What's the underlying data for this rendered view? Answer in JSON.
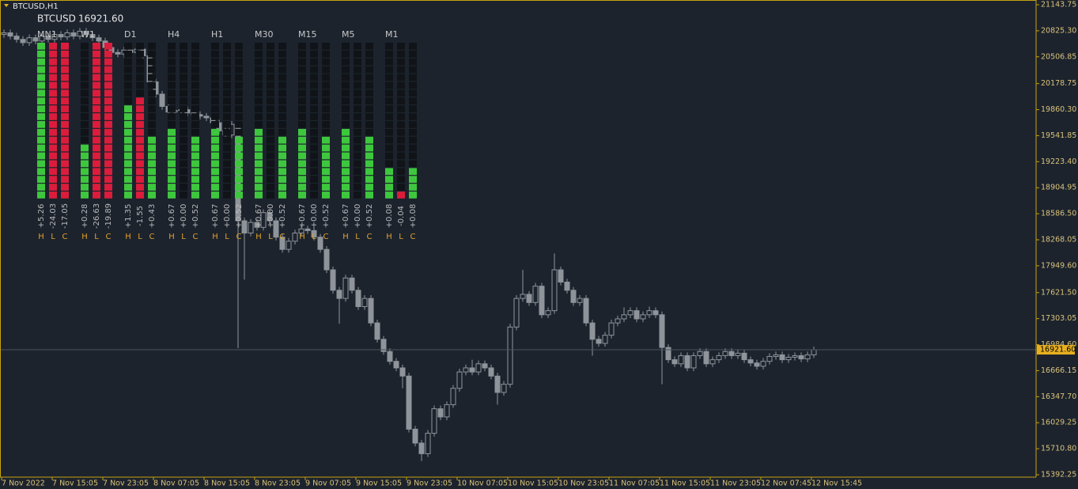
{
  "chart_data": {
    "type": "candlestick",
    "title": "BTCUSD,H1",
    "symbol": "BTCUSD",
    "color": "#8f949a",
    "axis_color": "#c8a20e",
    "last_price": 16921.6,
    "last_price_label": "16921.60",
    "ylim": [
      15392.25,
      21143.75
    ],
    "yticks": [
      21143.75,
      {
        "value": 20825.3,
        "label": "20825.30"
      },
      20506.85,
      20178.75,
      {
        "value": 19860.3,
        "label": "19860.30"
      },
      19541.85,
      {
        "value": 19223.4,
        "label": "19223.40"
      },
      18904.95,
      {
        "value": 18586.5,
        "label": "18586.50"
      },
      18268.05,
      {
        "value": 17949.6,
        "label": "17949.60"
      },
      {
        "value": 17621.5,
        "label": "17621.50"
      },
      17303.05,
      {
        "value": 16984.6,
        "label": "16984.60"
      },
      16666.15,
      {
        "value": 16347.7,
        "label": "16347.70"
      },
      16029.25,
      {
        "value": 15710.8,
        "label": "15710.80"
      },
      15392.25
    ],
    "categories": [
      "7 Nov 2022",
      null,
      null,
      null,
      null,
      null,
      null,
      null,
      "7 Nov 15:05",
      null,
      null,
      null,
      null,
      null,
      null,
      null,
      "7 Nov 23:05",
      null,
      null,
      null,
      null,
      null,
      null,
      null,
      "8 Nov 07:05",
      null,
      null,
      null,
      null,
      null,
      null,
      null,
      "8 Nov 15:05",
      null,
      null,
      null,
      null,
      null,
      null,
      null,
      "8 Nov 23:05",
      null,
      null,
      null,
      null,
      null,
      null,
      null,
      "9 Nov 07:05",
      null,
      null,
      null,
      null,
      null,
      null,
      null,
      "9 Nov 15:05",
      null,
      null,
      null,
      null,
      null,
      null,
      null,
      "9 Nov 23:05",
      null,
      null,
      null,
      null,
      null,
      null,
      null,
      "10 Nov 07:05",
      null,
      null,
      null,
      null,
      null,
      null,
      null,
      "10 Nov 15:05",
      null,
      null,
      null,
      null,
      null,
      null,
      null,
      "10 Nov 23:05",
      null,
      null,
      null,
      null,
      null,
      null,
      null,
      "11 Nov 07:05",
      null,
      null,
      null,
      null,
      null,
      null,
      null,
      "11 Nov 15:05",
      null,
      null,
      null,
      null,
      null,
      null,
      null,
      "11 Nov 23:05",
      null,
      null,
      null,
      null,
      null,
      null,
      null,
      "12 Nov 07:45",
      null,
      null,
      null,
      null,
      null,
      null,
      null,
      "12 Nov 15:45"
    ],
    "candles": [
      [
        20780,
        20840,
        20740,
        20800
      ],
      [
        20800,
        20840,
        20720,
        20760
      ],
      [
        20760,
        20800,
        20680,
        20720
      ],
      [
        20720,
        20760,
        20640,
        20680
      ],
      [
        20680,
        20780,
        20640,
        20740
      ],
      [
        20740,
        20780,
        20660,
        20700
      ],
      [
        20700,
        20800,
        20660,
        20760
      ],
      [
        20760,
        20800,
        20680,
        20720
      ],
      [
        20720,
        20820,
        20680,
        20780
      ],
      [
        20780,
        20820,
        20710,
        20750
      ],
      [
        20750,
        20840,
        20710,
        20800
      ],
      [
        20800,
        20840,
        20720,
        20760
      ],
      [
        20760,
        20860,
        20720,
        20820
      ],
      [
        20820,
        20860,
        20740,
        20780
      ],
      [
        20780,
        20820,
        20700,
        20740
      ],
      [
        20740,
        20780,
        20660,
        20700
      ],
      [
        20700,
        20740,
        20580,
        20620
      ],
      [
        20620,
        20660,
        20520,
        20560
      ],
      [
        20560,
        20600,
        20500,
        20540
      ],
      [
        20540,
        20630,
        20500,
        20590
      ],
      [
        20590,
        20630,
        20520,
        20560
      ],
      [
        20560,
        20640,
        20520,
        20600
      ],
      [
        20600,
        20640,
        20480,
        20520
      ],
      [
        20520,
        20560,
        20160,
        20200
      ],
      [
        20200,
        20240,
        20010,
        20050
      ],
      [
        20050,
        20090,
        19860,
        19900
      ],
      [
        19900,
        19940,
        19790,
        19830
      ],
      [
        19830,
        19890,
        19790,
        19850
      ],
      [
        19850,
        19900,
        19810,
        19860
      ],
      [
        19860,
        19900,
        19780,
        19820
      ],
      [
        19820,
        19860,
        19760,
        19800
      ],
      [
        19800,
        19840,
        19740,
        19780
      ],
      [
        19780,
        19820,
        19720,
        19760
      ],
      [
        19760,
        19800,
        19660,
        19700
      ],
      [
        19700,
        19740,
        19560,
        19600
      ],
      [
        19600,
        19640,
        19510,
        19550
      ],
      [
        19550,
        19720,
        19510,
        19680
      ],
      [
        19680,
        19720,
        16940,
        18500
      ],
      [
        18500,
        18540,
        17780,
        18350
      ],
      [
        18350,
        18520,
        18310,
        18480
      ],
      [
        18480,
        18520,
        18380,
        18420
      ],
      [
        18420,
        18640,
        18380,
        18600
      ],
      [
        18600,
        18640,
        18460,
        18500
      ],
      [
        18500,
        18540,
        18260,
        18300
      ],
      [
        18300,
        18340,
        18110,
        18150
      ],
      [
        18150,
        18290,
        18110,
        18250
      ],
      [
        18250,
        18390,
        18210,
        18350
      ],
      [
        18350,
        18440,
        18310,
        18400
      ],
      [
        18400,
        18440,
        18340,
        18380
      ],
      [
        18380,
        18420,
        18260,
        18300
      ],
      [
        18300,
        18340,
        18110,
        18150
      ],
      [
        18150,
        18190,
        17860,
        17900
      ],
      [
        17900,
        17940,
        17610,
        17650
      ],
      [
        17650,
        17690,
        17240,
        17550
      ],
      [
        17550,
        17840,
        17510,
        17800
      ],
      [
        17800,
        17840,
        17610,
        17650
      ],
      [
        17650,
        17690,
        17410,
        17450
      ],
      [
        17450,
        17590,
        17410,
        17550
      ],
      [
        17550,
        17590,
        17210,
        17250
      ],
      [
        17250,
        17290,
        17010,
        17050
      ],
      [
        17050,
        17090,
        16860,
        16900
      ],
      [
        16900,
        16940,
        16740,
        16780
      ],
      [
        16780,
        16820,
        16660,
        16700
      ],
      [
        16700,
        16740,
        16450,
        16600
      ],
      [
        16600,
        16640,
        15910,
        15950
      ],
      [
        15950,
        15990,
        15740,
        15780
      ],
      [
        15780,
        15820,
        15560,
        15650
      ],
      [
        15650,
        15940,
        15610,
        15900
      ],
      [
        15900,
        16240,
        15860,
        16200
      ],
      [
        16200,
        16240,
        16060,
        16100
      ],
      [
        16100,
        16290,
        16060,
        16250
      ],
      [
        16250,
        16490,
        16210,
        16450
      ],
      [
        16450,
        16690,
        16410,
        16650
      ],
      [
        16650,
        16740,
        16610,
        16700
      ],
      [
        16700,
        16800,
        16610,
        16650
      ],
      [
        16650,
        16790,
        16610,
        16750
      ],
      [
        16750,
        16790,
        16660,
        16700
      ],
      [
        16700,
        16740,
        16560,
        16600
      ],
      [
        16600,
        16640,
        16250,
        16400
      ],
      [
        16400,
        16540,
        16360,
        16500
      ],
      [
        16500,
        17240,
        16460,
        17200
      ],
      [
        17200,
        17590,
        17160,
        17550
      ],
      [
        17550,
        17900,
        17510,
        17600
      ],
      [
        17600,
        17640,
        17460,
        17500
      ],
      [
        17500,
        17740,
        17460,
        17700
      ],
      [
        17700,
        17740,
        17310,
        17350
      ],
      [
        17350,
        17440,
        17310,
        17400
      ],
      [
        17400,
        18100,
        17360,
        17900
      ],
      [
        17900,
        17940,
        17710,
        17750
      ],
      [
        17750,
        17790,
        17610,
        17650
      ],
      [
        17650,
        17690,
        17460,
        17500
      ],
      [
        17500,
        17590,
        17460,
        17550
      ],
      [
        17550,
        17590,
        17210,
        17250
      ],
      [
        17250,
        17290,
        16850,
        17050
      ],
      [
        17050,
        17090,
        16960,
        17000
      ],
      [
        17000,
        17140,
        16960,
        17100
      ],
      [
        17100,
        17290,
        17060,
        17250
      ],
      [
        17250,
        17340,
        17210,
        17300
      ],
      [
        17300,
        17440,
        17260,
        17350
      ],
      [
        17350,
        17440,
        17310,
        17400
      ],
      [
        17400,
        17440,
        17260,
        17300
      ],
      [
        17300,
        17390,
        17260,
        17350
      ],
      [
        17350,
        17450,
        17310,
        17400
      ],
      [
        17400,
        17440,
        17310,
        17350
      ],
      [
        17350,
        17390,
        16500,
        16950
      ],
      [
        16950,
        16990,
        16760,
        16800
      ],
      [
        16800,
        16840,
        16710,
        16750
      ],
      [
        16750,
        16890,
        16710,
        16850
      ],
      [
        16850,
        16890,
        16660,
        16700
      ],
      [
        16700,
        16890,
        16660,
        16850
      ],
      [
        16850,
        16940,
        16810,
        16900
      ],
      [
        16900,
        16940,
        16710,
        16750
      ],
      [
        16750,
        16840,
        16710,
        16800
      ],
      [
        16800,
        16890,
        16760,
        16850
      ],
      [
        16850,
        16940,
        16810,
        16900
      ],
      [
        16900,
        16940,
        16810,
        16850
      ],
      [
        16850,
        16920,
        16810,
        16880
      ],
      [
        16880,
        16920,
        16760,
        16800
      ],
      [
        16800,
        16840,
        16720,
        16760
      ],
      [
        16760,
        16800,
        16680,
        16720
      ],
      [
        16720,
        16820,
        16680,
        16780
      ],
      [
        16780,
        16880,
        16740,
        16840
      ],
      [
        16840,
        16900,
        16800,
        16860
      ],
      [
        16860,
        16900,
        16760,
        16800
      ],
      [
        16800,
        16870,
        16760,
        16830
      ],
      [
        16830,
        16890,
        16790,
        16850
      ],
      [
        16850,
        16890,
        16770,
        16810
      ],
      [
        16810,
        16900,
        16770,
        16860
      ],
      [
        16860,
        16960,
        16820,
        16921.6
      ]
    ]
  },
  "indicator": {
    "segments": 20,
    "empty_color": "#101418",
    "bar_labels": [
      "H",
      "L",
      "C"
    ],
    "panels": [
      {
        "timeframe": "MN1",
        "bars": [
          {
            "value": "+5.26",
            "level": 20,
            "color": "#3ec73e"
          },
          {
            "value": "-24.03",
            "level": 20,
            "color": "#dc1c3c"
          },
          {
            "value": "-17.05",
            "level": 20,
            "color": "#dc1c3c"
          }
        ]
      },
      {
        "timeframe": "W1",
        "bars": [
          {
            "value": "+0.28",
            "level": 7,
            "color": "#3ec73e"
          },
          {
            "value": "-26.63",
            "level": 20,
            "color": "#dc1c3c"
          },
          {
            "value": "-19.89",
            "level": 20,
            "color": "#dc1c3c"
          }
        ]
      },
      {
        "timeframe": "D1",
        "bars": [
          {
            "value": "+1.35",
            "level": 12,
            "color": "#3ec73e"
          },
          {
            "value": "-1.55",
            "level": 13,
            "color": "#dc1c3c"
          },
          {
            "value": "+0.43",
            "level": 8,
            "color": "#3ec73e"
          }
        ]
      },
      {
        "timeframe": "H4",
        "bars": [
          {
            "value": "+0.67",
            "level": 9,
            "color": "#3ec73e"
          },
          {
            "value": "+0.00",
            "level": 0,
            "color": "#3ec73e"
          },
          {
            "value": "+0.52",
            "level": 8,
            "color": "#3ec73e"
          }
        ]
      },
      {
        "timeframe": "H1",
        "bars": [
          {
            "value": "+0.67",
            "level": 9,
            "color": "#3ec73e"
          },
          {
            "value": "+0.00",
            "level": 0,
            "color": "#3ec73e"
          },
          {
            "value": "+0.52",
            "level": 8,
            "color": "#3ec73e"
          }
        ]
      },
      {
        "timeframe": "M30",
        "bars": [
          {
            "value": "+0.67",
            "level": 9,
            "color": "#3ec73e"
          },
          {
            "value": "+0.00",
            "level": 0,
            "color": "#3ec73e"
          },
          {
            "value": "+0.52",
            "level": 8,
            "color": "#3ec73e"
          }
        ]
      },
      {
        "timeframe": "M15",
        "bars": [
          {
            "value": "+0.67",
            "level": 9,
            "color": "#3ec73e"
          },
          {
            "value": "+0.00",
            "level": 0,
            "color": "#3ec73e"
          },
          {
            "value": "+0.52",
            "level": 8,
            "color": "#3ec73e"
          }
        ]
      },
      {
        "timeframe": "M5",
        "bars": [
          {
            "value": "+0.67",
            "level": 9,
            "color": "#3ec73e"
          },
          {
            "value": "+0.00",
            "level": 0,
            "color": "#3ec73e"
          },
          {
            "value": "+0.52",
            "level": 8,
            "color": "#3ec73e"
          }
        ]
      },
      {
        "timeframe": "M1",
        "bars": [
          {
            "value": "+0.08",
            "level": 4,
            "color": "#3ec73e"
          },
          {
            "value": "-0.04",
            "level": 1,
            "color": "#dc1c3c"
          },
          {
            "value": "+0.08",
            "level": 4,
            "color": "#3ec73e"
          }
        ]
      }
    ]
  }
}
